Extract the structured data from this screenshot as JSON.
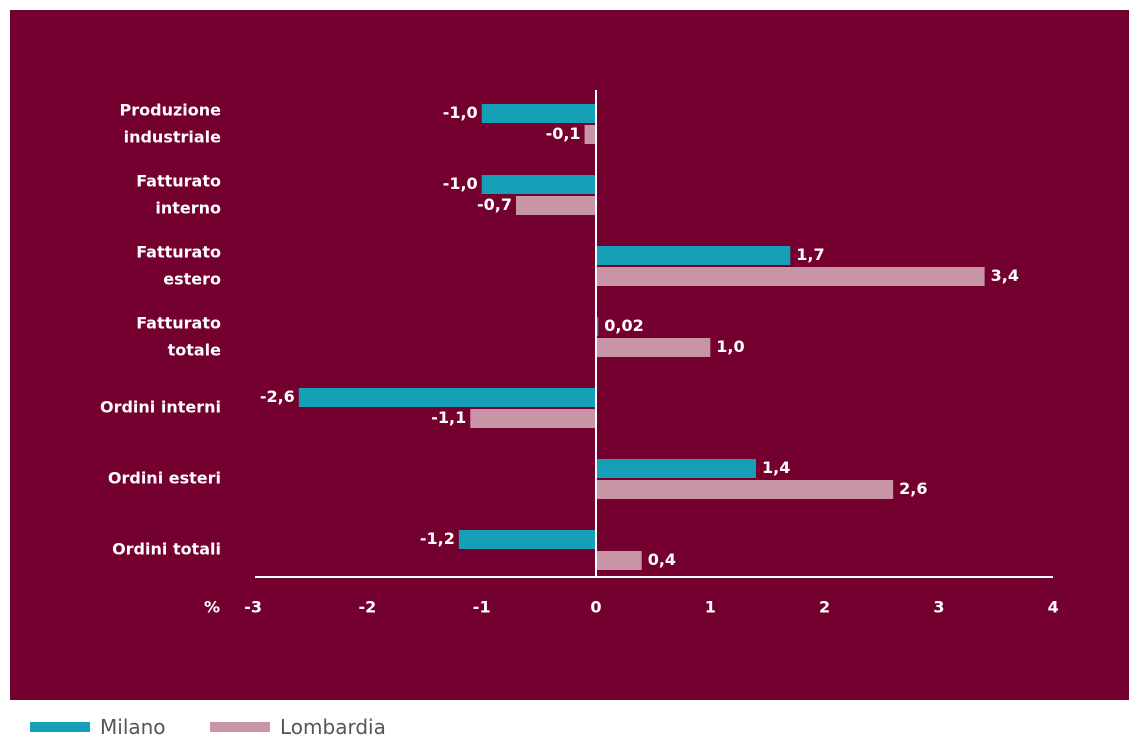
{
  "colors": {
    "background": "#74002f",
    "milano": "#16a0b8",
    "lombardia": "#c795a5",
    "axis": "#ffffff",
    "text": "#ffffff"
  },
  "legend": {
    "milano": "Milano",
    "lombardia": "Lombardia"
  },
  "chart_data": {
    "type": "bar",
    "orientation": "horizontal",
    "categories": [
      [
        "Produzione",
        "industriale"
      ],
      [
        "Fatturato",
        "interno"
      ],
      [
        "Fatturato",
        "estero"
      ],
      [
        "Fatturato",
        "totale"
      ],
      [
        "Ordini interni"
      ],
      [
        "Ordini esteri"
      ],
      [
        "Ordini totali"
      ]
    ],
    "series": [
      {
        "name": "Milano",
        "values": [
          -1.0,
          -1.0,
          1.7,
          0.02,
          -2.6,
          1.4,
          -1.2
        ],
        "labels": [
          "-1,0",
          "-1,0",
          "1,7",
          "0,02",
          "-2,6",
          "1,4",
          "-1,2"
        ]
      },
      {
        "name": "Lombardia",
        "values": [
          -0.1,
          -0.7,
          3.4,
          1.0,
          -1.1,
          2.6,
          0.4
        ],
        "labels": [
          "-0,1",
          "-0,7",
          "3,4",
          "1,0",
          "-1,1",
          "2,6",
          "0,4"
        ]
      }
    ],
    "xlabel": "%",
    "xlim": [
      -3,
      4
    ],
    "xticks": [
      -3,
      -2,
      -1,
      0,
      1,
      2,
      3,
      4
    ],
    "xtick_labels": [
      "-3",
      "-2",
      "-1",
      "0",
      "1",
      "2",
      "3",
      "4"
    ],
    "grid": false,
    "legend_position": "bottom-left"
  }
}
